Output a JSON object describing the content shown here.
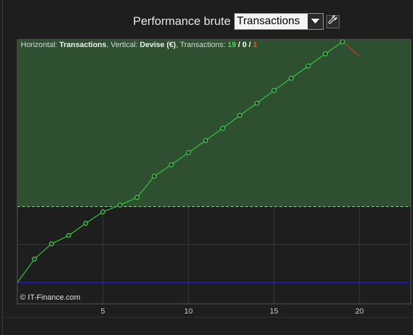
{
  "header": {
    "title": "Performance brute",
    "selected": "Transactions"
  },
  "caption": {
    "h_label": "Horizontal: ",
    "h_value": "Transactions",
    "v_label": ", Vertical: ",
    "v_value": "Devise (€)",
    "t_label": ", Transactions: ",
    "wins": "19",
    "sep1": " / ",
    "neutral": "0",
    "sep2": " / ",
    "losses": "1"
  },
  "credit": "© IT-Finance.com",
  "colors": {
    "profit_zone": "#2e4f30",
    "gain_line": "#2ecc40",
    "loss_line": "#d0382e",
    "baseline": "#2222cc",
    "grid": "#3a3a3a"
  },
  "chart_data": {
    "type": "line",
    "xlim": [
      0,
      23
    ],
    "ylim": [
      -0.14,
      1.6
    ],
    "x_ticks": [
      5,
      10,
      15,
      20
    ],
    "grid": true,
    "baseline_y": 0,
    "reference_y": 0.5,
    "x": [
      0,
      1,
      2,
      3,
      4,
      5,
      6,
      7,
      8,
      9,
      10,
      11,
      12,
      13,
      14,
      15,
      16,
      17,
      18,
      19,
      20
    ],
    "series": [
      {
        "values": [
          0,
          0.155,
          0.255,
          0.31,
          0.39,
          0.465,
          0.51,
          0.56,
          0.7,
          0.775,
          0.855,
          0.935,
          1.015,
          1.1,
          1.18,
          1.265,
          1.345,
          1.425,
          1.505,
          1.585,
          1.49
        ],
        "markers": [
          1,
          2,
          3,
          4,
          5,
          6,
          7,
          8,
          9,
          10,
          11,
          12,
          13,
          14,
          15,
          16,
          17,
          18,
          19
        ]
      }
    ]
  }
}
